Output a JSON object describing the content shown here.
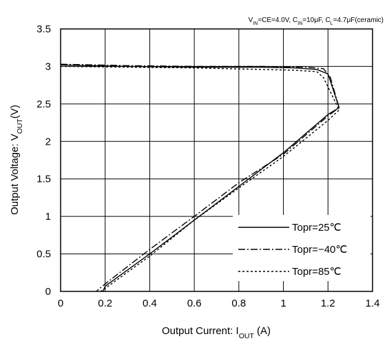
{
  "chart_data": {
    "type": "line",
    "conditions": {
      "parts": [
        {
          "text": "V",
          "sub": false
        },
        {
          "text": "IN",
          "sub": true
        },
        {
          "text": "=CE=4.0V, C",
          "sub": false
        },
        {
          "text": "IN",
          "sub": true
        },
        {
          "text": "=10",
          "sub": false
        },
        {
          "text": "μ",
          "sub": false
        },
        {
          "text": "F, C",
          "sub": false
        },
        {
          "text": "L",
          "sub": true
        },
        {
          "text": "=4.7",
          "sub": false
        },
        {
          "text": "μ",
          "sub": false
        },
        {
          "text": "F(ceramic)",
          "sub": false
        }
      ]
    },
    "xlabel": {
      "pre": "Output Current: I",
      "sub": "OUT",
      "post": " (A)"
    },
    "ylabel": {
      "pre": "Output Voltage: V",
      "sub": "OUT",
      "post": "(V)"
    },
    "xlim": [
      0,
      1.4
    ],
    "ylim": [
      0,
      3.5
    ],
    "xticks": [
      "0",
      "0.2",
      "0.4",
      "0.6",
      "0.8",
      "1",
      "1.2",
      "1.4"
    ],
    "yticks": [
      "0",
      "0.5",
      "1",
      "1.5",
      "2",
      "2.5",
      "3",
      "3.5"
    ],
    "grid": true,
    "legend_position": "bottom-right",
    "series": [
      {
        "name": "Topr=25℃",
        "dash": "solid",
        "points": [
          [
            0,
            3.02
          ],
          [
            0.3,
            3.0
          ],
          [
            0.6,
            2.99
          ],
          [
            0.9,
            2.99
          ],
          [
            1.05,
            2.98
          ],
          [
            1.15,
            2.96
          ],
          [
            1.2,
            2.9
          ],
          [
            1.25,
            2.45
          ],
          [
            1.2,
            2.36
          ],
          [
            1.0,
            1.85
          ],
          [
            0.8,
            1.4
          ],
          [
            0.6,
            0.95
          ],
          [
            0.4,
            0.5
          ],
          [
            0.2,
            0.07
          ],
          [
            0.19,
            0
          ]
        ]
      },
      {
        "name": "Topr=−40℃",
        "dash": "dashdot",
        "points": [
          [
            0,
            3.03
          ],
          [
            0.3,
            3.01
          ],
          [
            0.6,
            3.0
          ],
          [
            0.9,
            3.0
          ],
          [
            1.1,
            2.99
          ],
          [
            1.18,
            2.97
          ],
          [
            1.21,
            2.86
          ],
          [
            1.25,
            2.45
          ],
          [
            1.2,
            2.34
          ],
          [
            1.0,
            1.83
          ],
          [
            0.8,
            1.45
          ],
          [
            0.6,
            1.0
          ],
          [
            0.4,
            0.56
          ],
          [
            0.2,
            0.1
          ],
          [
            0.16,
            0
          ]
        ]
      },
      {
        "name": "Topr=85℃",
        "dash": "dotted",
        "points": [
          [
            0,
            3.0
          ],
          [
            0.3,
            2.99
          ],
          [
            0.6,
            2.98
          ],
          [
            0.9,
            2.96
          ],
          [
            1.05,
            2.95
          ],
          [
            1.15,
            2.93
          ],
          [
            1.18,
            2.85
          ],
          [
            1.25,
            2.42
          ],
          [
            1.2,
            2.28
          ],
          [
            1.0,
            1.8
          ],
          [
            0.8,
            1.38
          ],
          [
            0.6,
            0.95
          ],
          [
            0.4,
            0.47
          ],
          [
            0.2,
            0.04
          ],
          [
            0.18,
            0
          ]
        ]
      }
    ]
  }
}
